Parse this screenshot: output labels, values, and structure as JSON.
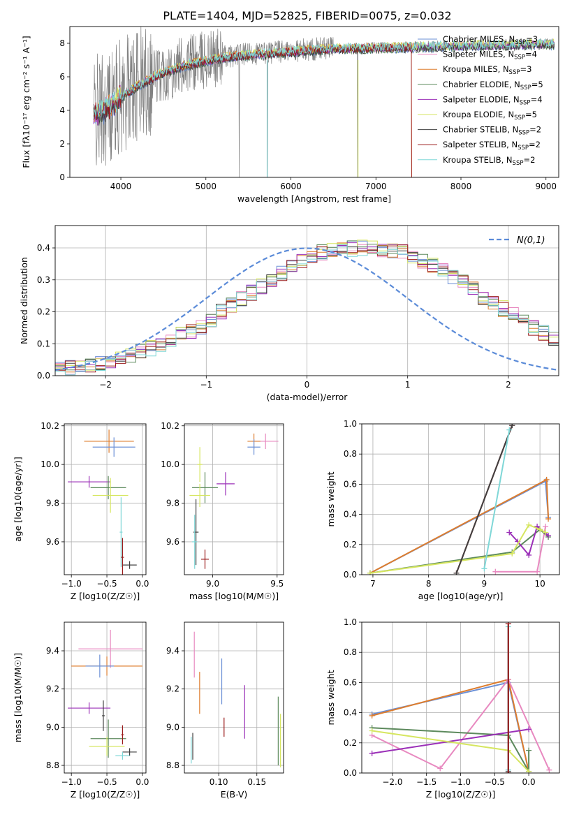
{
  "figure_title": "PLATE=1404, MJD=52825, FIBERID=0075, z=0.032",
  "colors": {
    "chabrier_miles": "#6a8fd6",
    "salpeter_miles": "#e889c0",
    "kroupa_miles": "#dd7d2e",
    "chabrier_elodie": "#5d8a5d",
    "salpeter_elodie": "#9b30b8",
    "kroupa_elodie": "#d6e660",
    "chabrier_stelib": "#404040",
    "salpeter_stelib": "#9a1b1b",
    "kroupa_stelib": "#7fd7d7",
    "data": "#808080",
    "normal": "#5b8bd8"
  },
  "chart_data": [
    {
      "type": "line",
      "panel": "spectrum",
      "xlabel": "wavelength [Angstrom, rest frame]",
      "ylabel": "Flux [fλ10⁻¹⁷ erg cm⁻² s⁻¹ A⁻¹]",
      "xlim": [
        3400,
        9150
      ],
      "ylim": [
        0,
        9
      ],
      "xticks": [
        4000,
        5000,
        6000,
        7000,
        8000,
        9000
      ],
      "yticks": [
        0,
        2,
        4,
        6,
        8
      ],
      "grid": false,
      "legend_position": "top-right",
      "legend": [
        {
          "key": "chabrier_miles",
          "text": "Chabrier MILES, N_SSP=3"
        },
        {
          "key": "salpeter_miles",
          "text": "Salpeter MILES, N_SSP=4"
        },
        {
          "key": "kroupa_miles",
          "text": "Kroupa MILES, N_SSP=3"
        },
        {
          "key": "chabrier_elodie",
          "text": "Chabrier ELODIE, N_SSP=5"
        },
        {
          "key": "salpeter_elodie",
          "text": "Salpeter ELODIE, N_SSP=4"
        },
        {
          "key": "kroupa_elodie",
          "text": "Kroupa ELODIE, N_SSP=5"
        },
        {
          "key": "chabrier_stelib",
          "text": "Chabrier STELIB, N_SSP=2"
        },
        {
          "key": "salpeter_stelib",
          "text": "Salpeter STELIB, N_SSP=2"
        },
        {
          "key": "kroupa_stelib",
          "text": "Kroupa STELIB, N_SSP=2"
        }
      ],
      "continuum": {
        "x": [
          3680,
          3800,
          3950,
          4100,
          4300,
          4500,
          4800,
          5200,
          5600,
          6000,
          6400,
          6800,
          7200,
          7600,
          8000,
          8400,
          8800,
          9100
        ],
        "y": [
          3.8,
          4.1,
          4.6,
          5.2,
          5.8,
          6.3,
          6.8,
          7.2,
          7.4,
          7.55,
          7.7,
          7.75,
          7.8,
          7.85,
          7.9,
          7.95,
          8.0,
          8.0
        ]
      }
    },
    {
      "type": "line",
      "panel": "residual_histogram",
      "xlabel": "(data-model)/error",
      "ylabel": "Normed distribution",
      "xlim": [
        -2.5,
        2.5
      ],
      "ylim": [
        0,
        0.47
      ],
      "xticks": [
        -2,
        -1,
        0,
        1,
        2
      ],
      "yticks": [
        0.0,
        0.1,
        0.2,
        0.3,
        0.4
      ],
      "grid": true,
      "legend_position": "top-right",
      "legend_label": "N(0,1)",
      "bin_width": 0.1,
      "bin_start": -2.5,
      "base_values": [
        0.02,
        0.025,
        0.03,
        0.035,
        0.04,
        0.048,
        0.056,
        0.065,
        0.075,
        0.086,
        0.1,
        0.113,
        0.128,
        0.14,
        0.155,
        0.175,
        0.2,
        0.22,
        0.24,
        0.26,
        0.28,
        0.3,
        0.322,
        0.34,
        0.36,
        0.37,
        0.385,
        0.39,
        0.395,
        0.398,
        0.4,
        0.398,
        0.395,
        0.39,
        0.385,
        0.375,
        0.36,
        0.345,
        0.33,
        0.31,
        0.29,
        0.27,
        0.24,
        0.225,
        0.21,
        0.19,
        0.17,
        0.15,
        0.135,
        0.12,
        0.105,
        0.093,
        0.082,
        0.072,
        0.063,
        0.055,
        0.048,
        0.042,
        0.037,
        0.033,
        0.03,
        0.027,
        0.025,
        0.022,
        0.02,
        0.018,
        0.015,
        0.012,
        0.01,
        0.008
      ]
    },
    {
      "type": "scatter",
      "panel": "age_vs_Z",
      "xlabel": "Z [log10(Z/Z☉)]",
      "ylabel": "age [log10(age/yr)]",
      "xlim": [
        -1.1,
        0.05
      ],
      "ylim": [
        9.43,
        10.21
      ],
      "xticks": [
        -1.0,
        -0.5,
        0.0
      ],
      "yticks": [
        9.6,
        9.8,
        10.0,
        10.2
      ],
      "grid": true,
      "points": [
        {
          "key": "kroupa_miles",
          "x": -0.47,
          "y": 10.12,
          "xerr": 0.35,
          "yerr": 0.06
        },
        {
          "key": "chabrier_miles",
          "x": -0.4,
          "y": 10.09,
          "xerr": 0.3,
          "yerr": 0.05
        },
        {
          "key": "salpeter_elodie",
          "x": -0.75,
          "y": 9.91,
          "xerr": 0.3,
          "yerr": 0.03
        },
        {
          "key": "chabrier_elodie",
          "x": -0.48,
          "y": 9.88,
          "xerr": 0.25,
          "yerr": 0.06
        },
        {
          "key": "kroupa_elodie",
          "x": -0.45,
          "y": 9.84,
          "xerr": 0.25,
          "yerr": 0.09
        },
        {
          "key": "kroupa_stelib",
          "x": -0.3,
          "y": 9.65,
          "xerr": 0.02,
          "yerr": 0.18
        },
        {
          "key": "chabrier_stelib",
          "x": -0.18,
          "y": 9.48,
          "xerr": 0.1,
          "yerr": 0.02
        },
        {
          "key": "salpeter_stelib",
          "x": -0.28,
          "y": 9.52,
          "xerr": 0.02,
          "yerr": 0.1
        }
      ]
    },
    {
      "type": "scatter",
      "panel": "age_vs_mass",
      "xlabel": "mass [log10(M/M☉)]",
      "ylabel": "",
      "xlim": [
        8.78,
        9.55
      ],
      "ylim": [
        9.43,
        10.21
      ],
      "xticks": [
        9.0,
        9.5
      ],
      "yticks": [
        9.6,
        9.8,
        10.0,
        10.2
      ],
      "grid": true,
      "points": [
        {
          "key": "salpeter_miles",
          "x": 9.41,
          "y": 10.12,
          "xerr": 0.1,
          "yerr": 0.04
        },
        {
          "key": "kroupa_miles",
          "x": 9.32,
          "y": 10.12,
          "xerr": 0.05,
          "yerr": 0.04
        },
        {
          "key": "chabrier_miles",
          "x": 9.32,
          "y": 10.09,
          "xerr": 0.05,
          "yerr": 0.04
        },
        {
          "key": "kroupa_elodie",
          "x": 8.9,
          "y": 10.0,
          "xerr": 0.02,
          "yerr": 0.09
        },
        {
          "key": "chabrier_elodie",
          "x": 8.94,
          "y": 9.88,
          "xerr": 0.1,
          "yerr": 0.08
        },
        {
          "key": "salpeter_elodie",
          "x": 9.1,
          "y": 9.9,
          "xerr": 0.07,
          "yerr": 0.06
        },
        {
          "key": "kroupa_elodie",
          "x": 8.9,
          "y": 9.84,
          "xerr": 0.08,
          "yerr": 0.06
        },
        {
          "key": "chabrier_stelib",
          "x": 8.87,
          "y": 9.65,
          "xerr": 0.02,
          "yerr": 0.17
        },
        {
          "key": "kroupa_stelib",
          "x": 8.86,
          "y": 9.6,
          "xerr": 0.02,
          "yerr": 0.14
        },
        {
          "key": "salpeter_stelib",
          "x": 8.94,
          "y": 9.51,
          "xerr": 0.03,
          "yerr": 0.05
        }
      ]
    },
    {
      "type": "line",
      "panel": "mass_weight_vs_age",
      "xlabel": "age [log10(age/yr)]",
      "ylabel": "mass weight",
      "xlim": [
        6.8,
        10.35
      ],
      "ylim": [
        0,
        1
      ],
      "xticks": [
        7,
        8,
        9,
        10
      ],
      "yticks": [
        0.0,
        0.2,
        0.4,
        0.6,
        0.8,
        1.0
      ],
      "grid": true,
      "series": [
        {
          "key": "chabrier_miles",
          "x": [
            6.95,
            10.1,
            10.15
          ],
          "y": [
            0.01,
            0.62,
            0.38
          ]
        },
        {
          "key": "kroupa_miles",
          "x": [
            6.95,
            10.12,
            10.15
          ],
          "y": [
            0.01,
            0.63,
            0.37
          ]
        },
        {
          "key": "salpeter_miles",
          "x": [
            9.2,
            9.95,
            10.1
          ],
          "y": [
            0.02,
            0.02,
            0.32
          ]
        },
        {
          "key": "chabrier_elodie",
          "x": [
            6.95,
            9.5,
            10.0,
            10.15
          ],
          "y": [
            0.01,
            0.15,
            0.3,
            0.25
          ]
        },
        {
          "key": "salpeter_elodie",
          "x": [
            9.45,
            9.6,
            9.8,
            9.95,
            10.15
          ],
          "y": [
            0.28,
            0.22,
            0.13,
            0.32,
            0.26
          ]
        },
        {
          "key": "kroupa_elodie",
          "x": [
            6.95,
            9.5,
            9.8,
            10.0,
            10.1
          ],
          "y": [
            0.01,
            0.14,
            0.33,
            0.3,
            0.28
          ]
        },
        {
          "key": "salpeter_stelib",
          "x": [
            8.5,
            9.5
          ],
          "y": [
            0.01,
            0.99
          ]
        },
        {
          "key": "chabrier_stelib",
          "x": [
            8.5,
            9.5
          ],
          "y": [
            0.01,
            0.99
          ]
        },
        {
          "key": "kroupa_stelib",
          "x": [
            9.0,
            9.45
          ],
          "y": [
            0.04,
            0.96
          ]
        }
      ]
    },
    {
      "type": "scatter",
      "panel": "mass_vs_Z",
      "xlabel": "Z [log10(Z/Z☉)]",
      "ylabel": "mass [log10(M/M☉)]",
      "xlim": [
        -1.1,
        0.05
      ],
      "ylim": [
        8.76,
        9.55
      ],
      "xticks": [
        -1.0,
        -0.5,
        0.0
      ],
      "yticks": [
        8.8,
        9.0,
        9.2,
        9.4
      ],
      "grid": true,
      "points": [
        {
          "key": "salpeter_miles",
          "x": -0.45,
          "y": 9.41,
          "xerr": 0.45,
          "yerr": 0.1
        },
        {
          "key": "kroupa_miles",
          "x": -0.5,
          "y": 9.32,
          "xerr": 0.5,
          "yerr": 0.05
        },
        {
          "key": "chabrier_miles",
          "x": -0.6,
          "y": 9.32,
          "xerr": 0.2,
          "yerr": 0.06
        },
        {
          "key": "salpeter_elodie",
          "x": -0.75,
          "y": 9.1,
          "xerr": 0.3,
          "yerr": 0.03
        },
        {
          "key": "chabrier_stelib",
          "x": -0.55,
          "y": 9.06,
          "xerr": 0.02,
          "yerr": 0.08
        },
        {
          "key": "chabrier_elodie",
          "x": -0.48,
          "y": 8.94,
          "xerr": 0.25,
          "yerr": 0.1
        },
        {
          "key": "kroupa_elodie",
          "x": -0.5,
          "y": 8.9,
          "xerr": 0.25,
          "yerr": 0.05
        },
        {
          "key": "salpeter_stelib",
          "x": -0.28,
          "y": 8.96,
          "xerr": 0.02,
          "yerr": 0.05
        },
        {
          "key": "chabrier_stelib",
          "x": -0.18,
          "y": 8.87,
          "xerr": 0.1,
          "yerr": 0.02
        },
        {
          "key": "kroupa_stelib",
          "x": -0.28,
          "y": 8.85,
          "xerr": 0.1,
          "yerr": 0.02
        }
      ]
    },
    {
      "type": "scatter",
      "panel": "mass_vs_EBV",
      "xlabel": "E(B-V)",
      "ylabel": "",
      "xlim": [
        0.055,
        0.185
      ],
      "ylim": [
        8.76,
        9.55
      ],
      "xticks": [
        0.1,
        0.15
      ],
      "yticks": [
        8.8,
        9.0,
        9.2,
        9.4
      ],
      "grid": true,
      "points": [
        {
          "key": "salpeter_miles",
          "x": 0.068,
          "y": 9.38,
          "xerr": 0,
          "yerr": 0.12
        },
        {
          "key": "kroupa_miles",
          "x": 0.075,
          "y": 9.18,
          "xerr": 0,
          "yerr": 0.11
        },
        {
          "key": "chabrier_miles",
          "x": 0.104,
          "y": 9.24,
          "xerr": 0,
          "yerr": 0.12
        },
        {
          "key": "salpeter_elodie",
          "x": 0.134,
          "y": 9.08,
          "xerr": 0,
          "yerr": 0.14
        },
        {
          "key": "salpeter_stelib",
          "x": 0.107,
          "y": 9.0,
          "xerr": 0,
          "yerr": 0.05
        },
        {
          "key": "chabrier_elodie",
          "x": 0.178,
          "y": 8.98,
          "xerr": 0,
          "yerr": 0.18
        },
        {
          "key": "kroupa_elodie",
          "x": 0.181,
          "y": 8.93,
          "xerr": 0,
          "yerr": 0.14
        },
        {
          "key": "chabrier_stelib",
          "x": 0.066,
          "y": 8.9,
          "xerr": 0,
          "yerr": 0.07
        },
        {
          "key": "kroupa_stelib",
          "x": 0.064,
          "y": 8.88,
          "xerr": 0,
          "yerr": 0.07
        }
      ]
    },
    {
      "type": "line",
      "panel": "mass_weight_vs_Z",
      "xlabel": "Z [log10(Z/Z☉)]",
      "ylabel": "mass weight",
      "xlim": [
        -2.45,
        0.45
      ],
      "ylim": [
        0,
        1
      ],
      "xticks": [
        -2.0,
        -1.5,
        -1.0,
        -0.5,
        0.0
      ],
      "yticks": [
        0.0,
        0.2,
        0.4,
        0.6,
        0.8,
        1.0
      ],
      "grid": true,
      "series": [
        {
          "key": "chabrier_miles",
          "x": [
            -2.3,
            -0.3,
            0.0
          ],
          "y": [
            0.39,
            0.6,
            0.01
          ]
        },
        {
          "key": "kroupa_miles",
          "x": [
            -2.3,
            -0.3,
            0.0
          ],
          "y": [
            0.38,
            0.62,
            0.01
          ]
        },
        {
          "key": "salpeter_miles",
          "x": [
            -2.3,
            -1.3,
            -0.3,
            0.3
          ],
          "y": [
            0.25,
            0.03,
            0.62,
            0.02
          ]
        },
        {
          "key": "chabrier_elodie",
          "x": [
            -2.3,
            -0.3,
            0.0,
            0.0
          ],
          "y": [
            0.3,
            0.25,
            0.01,
            0.15
          ]
        },
        {
          "key": "salpeter_elodie",
          "x": [
            -2.3,
            0.0
          ],
          "y": [
            0.13,
            0.29
          ]
        },
        {
          "key": "kroupa_elodie",
          "x": [
            -2.3,
            -0.3,
            0.0
          ],
          "y": [
            0.28,
            0.15,
            0.01
          ]
        },
        {
          "key": "kroupa_stelib",
          "x": [
            -0.3,
            -0.3
          ],
          "y": [
            0.02,
            0.97
          ]
        },
        {
          "key": "chabrier_stelib",
          "x": [
            -0.3,
            -0.3
          ],
          "y": [
            0.01,
            0.99
          ]
        },
        {
          "key": "salpeter_stelib",
          "x": [
            -0.3,
            -0.3
          ],
          "y": [
            0.0,
            0.99
          ]
        }
      ]
    }
  ]
}
